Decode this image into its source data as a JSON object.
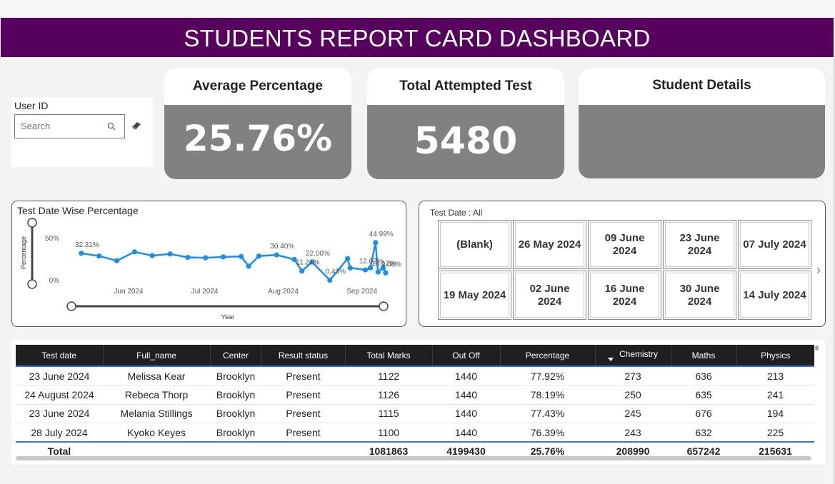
{
  "banner": {
    "title": "STUDENTS REPORT CARD DASHBOARD"
  },
  "user_filter": {
    "label": "User ID",
    "placeholder": "Search"
  },
  "cards": {
    "avg": {
      "title": "Average Percentage",
      "value": "25.76%"
    },
    "attempted": {
      "title": "Total Attempted Test",
      "value": "5480"
    },
    "details": {
      "title": "Student Details"
    }
  },
  "chart_data": {
    "type": "line",
    "title": "Test Date Wise Percentage",
    "xlabel": "Year",
    "ylabel": "Percentage",
    "y_ticks": [
      "50%",
      "0%"
    ],
    "ylim": [
      0,
      55
    ],
    "x_ticks": [
      {
        "label": "Jun 2024",
        "date": "2024-06-01"
      },
      {
        "label": "Jul 2024",
        "date": "2024-07-01"
      },
      {
        "label": "Aug 2024",
        "date": "2024-08-01"
      },
      {
        "label": "Sep 2024",
        "date": "2024-09-01"
      }
    ],
    "xlim": [
      "2024-05-12",
      "2024-09-18"
    ],
    "color": "#1a8fe8",
    "points": [
      {
        "date": "2024-05-19",
        "y": 32.31,
        "label": "32.31%"
      },
      {
        "date": "2024-05-26",
        "y": 29.0
      },
      {
        "date": "2024-06-02",
        "y": 23.5
      },
      {
        "date": "2024-06-09",
        "y": 34.0
      },
      {
        "date": "2024-06-16",
        "y": 29.5
      },
      {
        "date": "2024-06-23",
        "y": 31.5
      },
      {
        "date": "2024-06-30",
        "y": 27.5
      },
      {
        "date": "2024-07-07",
        "y": 27.0
      },
      {
        "date": "2024-07-14",
        "y": 28.0
      },
      {
        "date": "2024-07-21",
        "y": 28.5
      },
      {
        "date": "2024-07-24",
        "y": 17.0
      },
      {
        "date": "2024-07-28",
        "y": 29.0
      },
      {
        "date": "2024-08-04",
        "y": 30.4,
        "label": "30.40%"
      },
      {
        "date": "2024-08-11",
        "y": 25.0
      },
      {
        "date": "2024-08-14",
        "y": 11.24,
        "label": "11.24%"
      },
      {
        "date": "2024-08-18",
        "y": 22.0,
        "label": "22.00%"
      },
      {
        "date": "2024-08-25",
        "y": 0.43,
        "label": "0.43%"
      },
      {
        "date": "2024-09-01",
        "y": 26.0
      },
      {
        "date": "2024-09-02",
        "y": 15.0
      },
      {
        "date": "2024-09-08",
        "y": 12.62,
        "label": "12.62%"
      },
      {
        "date": "2024-09-10",
        "y": 15.0
      },
      {
        "date": "2024-09-12",
        "y": 44.99,
        "label": "44.99%"
      },
      {
        "date": "2024-09-13",
        "y": 10.12,
        "label": "10.12%"
      },
      {
        "date": "2024-09-15",
        "y": 15.0
      },
      {
        "date": "2024-09-16",
        "y": 9.08,
        "label": "9.08%"
      }
    ]
  },
  "test_date_slicer": {
    "title": "Test Date : All",
    "tiles": [
      [
        "(Blank)",
        "26 May 2024",
        "09 June 2024",
        "23 June 2024",
        "07 July 2024"
      ],
      [
        "19 May 2024",
        "02 June 2024",
        "16 June 2024",
        "30 June 2024",
        "14 July 2024"
      ]
    ]
  },
  "table": {
    "columns": [
      "Test date",
      "Full_name",
      "Center",
      "Result status",
      "Total Marks",
      "Out Off",
      "Percentage",
      "Chemistry",
      "Maths",
      "Physics"
    ],
    "sorted_column": "Chemistry",
    "rows": [
      [
        "23 June 2024",
        "Melissa Kear",
        "Brooklyn",
        "Present",
        "1122",
        "1440",
        "77.92%",
        "273",
        "636",
        "213"
      ],
      [
        "24 August 2024",
        "Rebeca Thorp",
        "Brooklyn",
        "Present",
        "1126",
        "1440",
        "78.19%",
        "250",
        "635",
        "241"
      ],
      [
        "23 June 2024",
        "Melania Stillings",
        "Brooklyn",
        "Present",
        "1115",
        "1440",
        "77.43%",
        "245",
        "676",
        "194"
      ],
      [
        "28 July 2024",
        "Kyoko Keyes",
        "Brooklyn",
        "Present",
        "1100",
        "1440",
        "76.39%",
        "243",
        "632",
        "225"
      ]
    ],
    "total": [
      "Total",
      "",
      "",
      "",
      "1081863",
      "4199430",
      "25.76%",
      "208990",
      "657242",
      "215631"
    ]
  }
}
